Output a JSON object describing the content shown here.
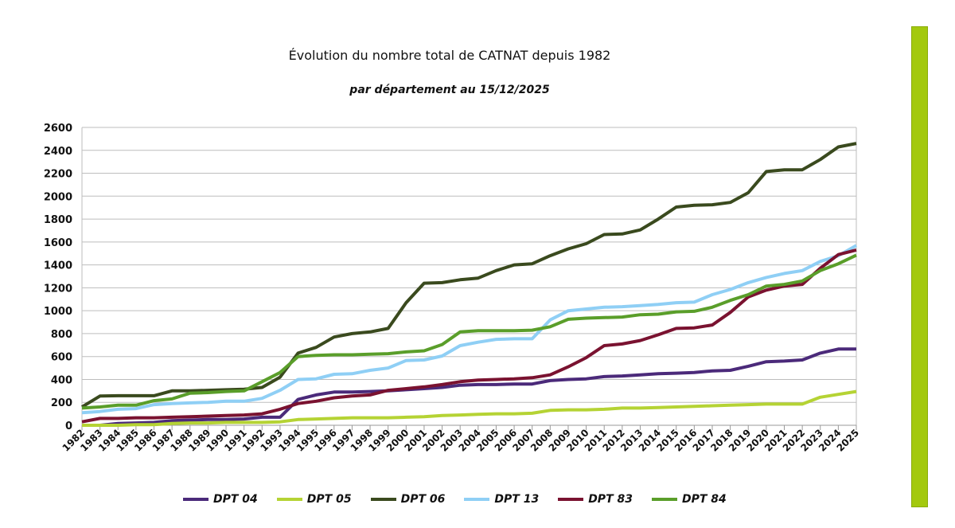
{
  "chart_data": {
    "type": "line",
    "title": "Évolution du nombre total de CATNAT depuis 1982",
    "subtitle": "par département au 15/12/2025",
    "xlabel": "",
    "ylabel": "",
    "ylim": [
      0,
      2600
    ],
    "yticks": [
      0,
      200,
      400,
      600,
      800,
      1000,
      1200,
      1400,
      1600,
      1800,
      2000,
      2200,
      2400,
      2600
    ],
    "grid": true,
    "legend": "bottom",
    "x": [
      1982,
      1983,
      1984,
      1985,
      1986,
      1987,
      1988,
      1989,
      1990,
      1991,
      1992,
      1993,
      1994,
      1995,
      1996,
      1997,
      1998,
      1999,
      2000,
      2001,
      2002,
      2003,
      2004,
      2005,
      2006,
      2007,
      2008,
      2009,
      2010,
      2011,
      2012,
      2013,
      2014,
      2015,
      2016,
      2017,
      2018,
      2019,
      2020,
      2021,
      2022,
      2023,
      2024,
      2025
    ],
    "series": [
      {
        "name": "DPT 04",
        "color": "#4b2a7a",
        "values": [
          0,
          0,
          15,
          20,
          25,
          40,
          45,
          50,
          50,
          55,
          70,
          70,
          225,
          265,
          290,
          290,
          295,
          300,
          310,
          320,
          330,
          350,
          355,
          355,
          360,
          360,
          390,
          400,
          405,
          425,
          430,
          440,
          450,
          455,
          460,
          475,
          480,
          515,
          555,
          560,
          570,
          630,
          665,
          665
        ]
      },
      {
        "name": "DPT 05",
        "color": "#b5d334",
        "values": [
          0,
          0,
          0,
          5,
          5,
          15,
          20,
          20,
          25,
          25,
          25,
          30,
          50,
          55,
          60,
          65,
          65,
          65,
          70,
          75,
          85,
          90,
          95,
          100,
          100,
          105,
          130,
          135,
          135,
          140,
          150,
          150,
          155,
          160,
          165,
          170,
          175,
          180,
          185,
          185,
          185,
          245,
          270,
          295
        ]
      },
      {
        "name": "DPT 06",
        "color": "#3a4a1e",
        "values": [
          160,
          255,
          258,
          258,
          258,
          300,
          300,
          305,
          310,
          315,
          330,
          420,
          630,
          680,
          770,
          800,
          815,
          845,
          1070,
          1240,
          1245,
          1270,
          1285,
          1350,
          1400,
          1410,
          1480,
          1540,
          1585,
          1665,
          1670,
          1705,
          1800,
          1905,
          1920,
          1925,
          1945,
          2030,
          2215,
          2230,
          2230,
          2320,
          2430,
          2460
        ]
      },
      {
        "name": "DPT 13",
        "color": "#8fcff5",
        "values": [
          110,
          120,
          140,
          145,
          180,
          190,
          195,
          200,
          210,
          210,
          235,
          305,
          400,
          405,
          445,
          450,
          480,
          500,
          565,
          570,
          605,
          695,
          725,
          750,
          755,
          755,
          920,
          1000,
          1015,
          1030,
          1035,
          1045,
          1055,
          1070,
          1075,
          1140,
          1185,
          1245,
          1290,
          1325,
          1350,
          1430,
          1480,
          1570
        ]
      },
      {
        "name": "DPT 83",
        "color": "#7a1230",
        "values": [
          30,
          60,
          60,
          65,
          65,
          70,
          75,
          80,
          85,
          90,
          100,
          140,
          190,
          210,
          240,
          255,
          265,
          305,
          320,
          335,
          355,
          380,
          395,
          400,
          405,
          415,
          440,
          510,
          590,
          695,
          710,
          740,
          790,
          845,
          850,
          875,
          985,
          1120,
          1180,
          1215,
          1230,
          1370,
          1490,
          1530
        ]
      },
      {
        "name": "DPT 84",
        "color": "#5a9e2a",
        "values": [
          150,
          160,
          175,
          175,
          215,
          230,
          280,
          285,
          295,
          300,
          380,
          460,
          600,
          610,
          615,
          615,
          620,
          625,
          640,
          650,
          705,
          815,
          825,
          825,
          825,
          830,
          860,
          925,
          935,
          940,
          945,
          965,
          970,
          990,
          995,
          1030,
          1090,
          1140,
          1215,
          1230,
          1260,
          1350,
          1410,
          1485
        ]
      }
    ]
  },
  "side_bar_color": "#a3c90e"
}
